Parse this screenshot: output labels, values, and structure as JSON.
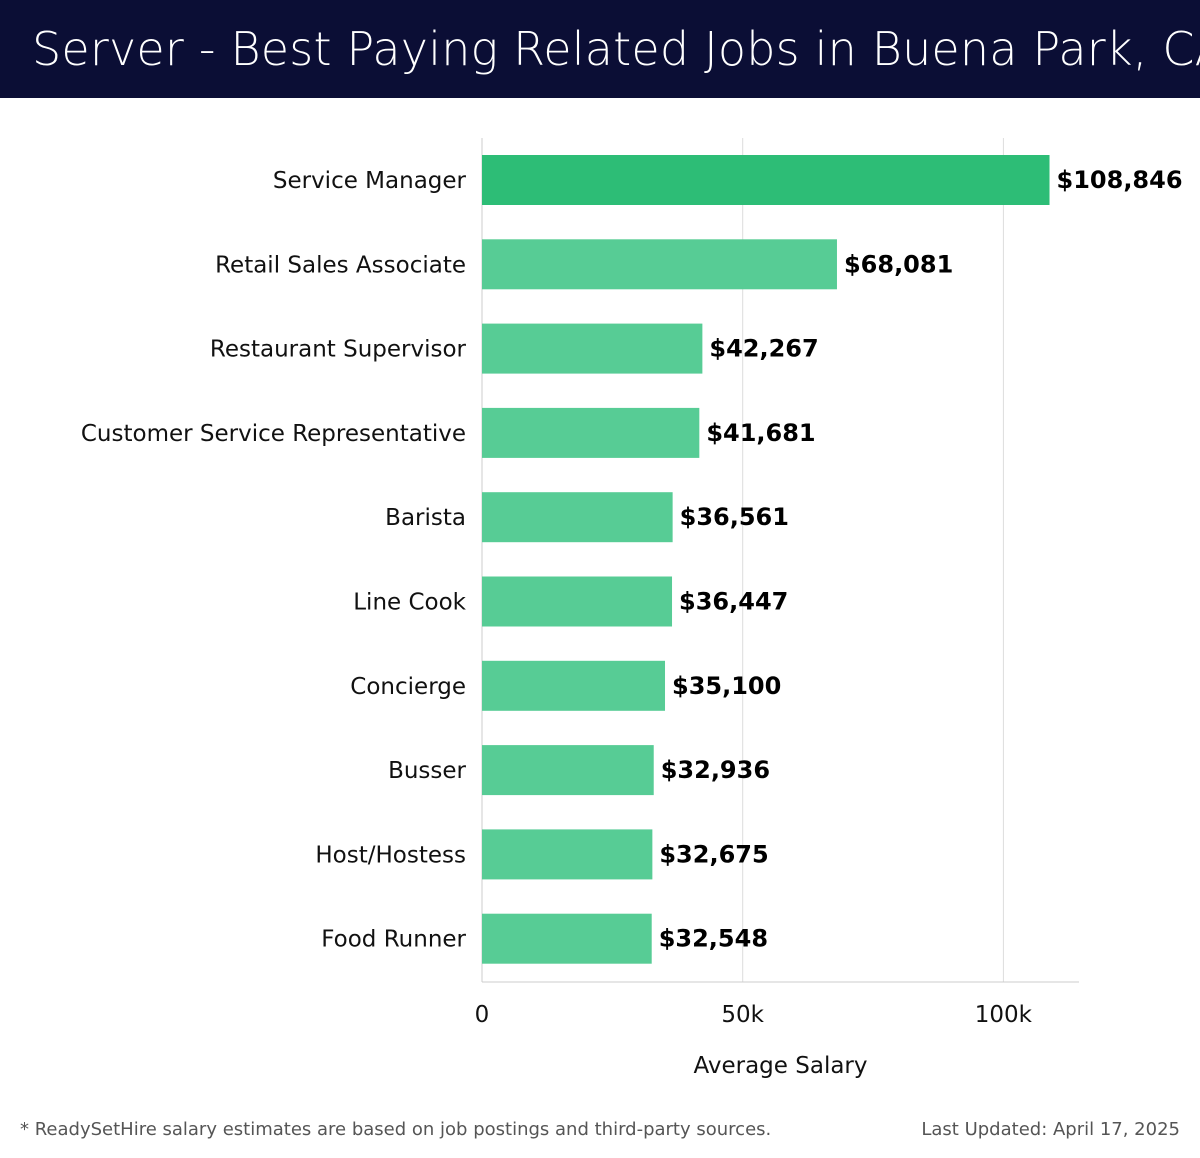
{
  "header": {
    "title": "Server - Best Paying Related Jobs in Buena Park, CA"
  },
  "footer": {
    "note": "* ReadySetHire salary estimates are based on job postings and third-party sources.",
    "updated": "Last Updated: April 17, 2025"
  },
  "colors": {
    "header_bg": "#0b0e35",
    "top_bar": "#2dbd76",
    "bar": "#57cc95",
    "grid": "#dcdcdc"
  },
  "chart_data": {
    "type": "bar",
    "orientation": "horizontal",
    "categories": [
      "Service Manager",
      "Retail Sales Associate",
      "Restaurant Supervisor",
      "Customer Service Representative",
      "Barista",
      "Line Cook",
      "Concierge",
      "Busser",
      "Host/Hostess",
      "Food Runner"
    ],
    "values": [
      108846,
      68081,
      42267,
      41681,
      36561,
      36447,
      35100,
      32936,
      32675,
      32548
    ],
    "value_labels": [
      "$108,846",
      "$68,081",
      "$42,267",
      "$41,681",
      "$36,561",
      "$36,447",
      "$35,100",
      "$32,936",
      "$32,675",
      "$32,548"
    ],
    "xlabel": "Average Salary",
    "ylabel": "",
    "xlim": [
      0,
      114500
    ],
    "xticks": [
      0,
      50000,
      100000
    ],
    "xtick_labels": [
      "0",
      "50k",
      "100k"
    ],
    "grid": true,
    "legend": "none"
  }
}
